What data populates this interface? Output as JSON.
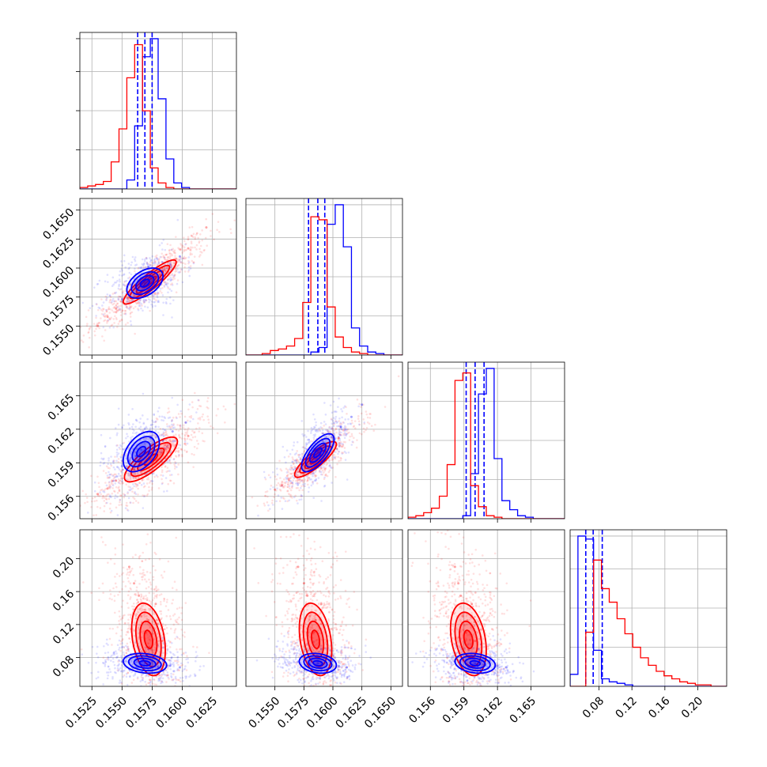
{
  "colors": {
    "blue": "#0000ff",
    "red": "#ff0000"
  },
  "chart_data": {
    "type": "corner",
    "grid": true,
    "params": [
      {
        "range": [
          0.1515,
          0.1645
        ],
        "ticks": [
          0.1525,
          0.155,
          0.1575,
          0.16,
          0.1625
        ],
        "tick_labels": [
          "0.1525",
          "0.1550",
          "0.1575",
          "0.1600",
          "0.1625"
        ]
      },
      {
        "range": [
          0.1525,
          0.166
        ],
        "ticks": [
          0.155,
          0.1575,
          0.16,
          0.1625,
          0.165
        ],
        "tick_labels": [
          "0.1550",
          "0.1575",
          "0.1600",
          "0.1625",
          "0.1650"
        ]
      },
      {
        "range": [
          0.154,
          0.168
        ],
        "ticks": [
          0.156,
          0.159,
          0.162,
          0.165
        ],
        "tick_labels": [
          "0.156",
          "0.159",
          "0.162",
          "0.165"
        ]
      },
      {
        "range": [
          0.045,
          0.235
        ],
        "ticks": [
          0.08,
          0.12,
          0.16,
          0.2
        ],
        "tick_labels": [
          "0.08",
          "0.12",
          "0.16",
          "0.20"
        ]
      }
    ],
    "series": [
      {
        "color": "blue",
        "quantiles": [
          [
            0.1563,
            0.1569,
            0.1575
          ],
          [
            0.1579,
            0.1587,
            0.1593
          ],
          [
            0.1592,
            0.16,
            0.1608
          ],
          [
            0.064,
            0.073,
            0.084
          ]
        ],
        "hist_bins": [
          [
            0.1515,
            0.15215,
            0.1528,
            0.15345,
            0.1541,
            0.15475,
            0.1554,
            0.15605,
            0.1567,
            0.15735,
            0.158,
            0.15865,
            0.1593,
            0.15995,
            0.1606,
            0.16125,
            0.1619,
            0.16255,
            0.1632,
            0.16385,
            0.1645
          ],
          [
            0.1525,
            0.1532,
            0.1539,
            0.1546,
            0.1553,
            0.156,
            0.1567,
            0.1574,
            0.1581,
            0.1588,
            0.1595,
            0.1602,
            0.1609,
            0.1616,
            0.1623,
            0.163,
            0.1637,
            0.1644,
            0.1651,
            0.1658,
            0.1665
          ],
          [
            0.154,
            0.1547,
            0.1554,
            0.1561,
            0.1568,
            0.1575,
            0.1582,
            0.1589,
            0.1596,
            0.1603,
            0.161,
            0.1617,
            0.1624,
            0.1631,
            0.1638,
            0.1645,
            0.1652,
            0.1659,
            0.1666,
            0.1673,
            0.168
          ],
          [
            0.045,
            0.0545,
            0.064,
            0.0735,
            0.083,
            0.0925,
            0.102,
            0.1115,
            0.121,
            0.1305,
            0.14,
            0.1495,
            0.159,
            0.1685,
            0.178,
            0.1875,
            0.197,
            0.2065,
            0.216,
            0.2255,
            0.235
          ]
        ],
        "hist_counts": [
          [
            0,
            0,
            0,
            0,
            0,
            0,
            0.06,
            0.42,
            0.88,
            1.0,
            0.6,
            0.2,
            0.04,
            0.01,
            0,
            0,
            0,
            0,
            0,
            0
          ],
          [
            0,
            0,
            0,
            0,
            0,
            0,
            0,
            0,
            0.02,
            0.05,
            0.87,
            1.0,
            0.72,
            0.18,
            0.06,
            0.02,
            0.01,
            0,
            0,
            0
          ],
          [
            0,
            0,
            0,
            0,
            0,
            0,
            0,
            0.02,
            0.3,
            0.83,
            1.0,
            0.4,
            0.12,
            0.06,
            0.02,
            0.01,
            0,
            0,
            0,
            0
          ],
          [
            0.08,
            1.0,
            0.98,
            0.24,
            0.05,
            0.03,
            0.02,
            0.01,
            0,
            0,
            0,
            0,
            0,
            0,
            0,
            0,
            0,
            0,
            0,
            0
          ]
        ],
        "points_2d": {
          "1-0": [
            [
              0.1569,
              0.1587
            ],
            [
              0.1562,
              0.1582
            ],
            [
              0.1577,
              0.1593
            ],
            [
              0.1556,
              0.1578
            ],
            [
              0.1584,
              0.1598
            ],
            [
              0.1572,
              0.1601
            ],
            [
              0.1566,
              0.1575
            ],
            [
              0.159,
              0.1603
            ],
            [
              0.155,
              0.1573
            ],
            [
              0.1598,
              0.161
            ]
          ],
          "2-0": [
            [
              0.1569,
              0.16
            ],
            [
              0.1562,
              0.1596
            ],
            [
              0.1577,
              0.1605
            ],
            [
              0.1556,
              0.1592
            ],
            [
              0.1584,
              0.161
            ],
            [
              0.1574,
              0.1612
            ],
            [
              0.1565,
              0.1588
            ],
            [
              0.1592,
              0.1618
            ],
            [
              0.155,
              0.1587
            ],
            [
              0.1603,
              0.1626
            ]
          ],
          "2-1": [
            [
              0.1587,
              0.16
            ],
            [
              0.1582,
              0.1595
            ],
            [
              0.1593,
              0.1606
            ],
            [
              0.1576,
              0.159
            ],
            [
              0.1599,
              0.1613
            ],
            [
              0.1607,
              0.1622
            ],
            [
              0.1616,
              0.1631
            ],
            [
              0.157,
              0.1586
            ],
            [
              0.1589,
              0.1598
            ],
            [
              0.1625,
              0.1642
            ]
          ],
          "3-0": [
            [
              0.1569,
              0.073
            ],
            [
              0.1562,
              0.068
            ],
            [
              0.1577,
              0.08
            ],
            [
              0.1556,
              0.066
            ],
            [
              0.1584,
              0.076
            ],
            [
              0.1572,
              0.09
            ],
            [
              0.1566,
              0.062
            ],
            [
              0.159,
              0.07
            ],
            [
              0.155,
              0.075
            ],
            [
              0.1598,
              0.068
            ]
          ],
          "3-1": [
            [
              0.1587,
              0.073
            ],
            [
              0.1582,
              0.068
            ],
            [
              0.1593,
              0.08
            ],
            [
              0.1576,
              0.066
            ],
            [
              0.1599,
              0.076
            ],
            [
              0.159,
              0.09
            ],
            [
              0.1584,
              0.062
            ],
            [
              0.1605,
              0.07
            ],
            [
              0.157,
              0.075
            ],
            [
              0.1612,
              0.068
            ]
          ],
          "3-2": [
            [
              0.16,
              0.073
            ],
            [
              0.1594,
              0.068
            ],
            [
              0.1607,
              0.08
            ],
            [
              0.1588,
              0.066
            ],
            [
              0.1613,
              0.076
            ],
            [
              0.1603,
              0.09
            ],
            [
              0.1597,
              0.062
            ],
            [
              0.162,
              0.07
            ],
            [
              0.1582,
              0.075
            ],
            [
              0.1628,
              0.068
            ]
          ]
        }
      },
      {
        "color": "red",
        "quantiles": [
          null,
          null,
          null,
          null
        ],
        "hist_bins": [
          [
            0.1515,
            0.15215,
            0.1528,
            0.15345,
            0.1541,
            0.15475,
            0.1554,
            0.15605,
            0.1567,
            0.15735,
            0.158,
            0.15865,
            0.1593,
            0.15995,
            0.1606,
            0.16125,
            0.1619,
            0.16255,
            0.1632,
            0.16385,
            0.1645
          ],
          [
            0.1525,
            0.1532,
            0.1539,
            0.1546,
            0.1553,
            0.156,
            0.1567,
            0.1574,
            0.1581,
            0.1588,
            0.1595,
            0.1602,
            0.1609,
            0.1616,
            0.1623,
            0.163,
            0.1637,
            0.1644,
            0.1651,
            0.1658,
            0.1665
          ],
          [
            0.154,
            0.1547,
            0.1554,
            0.1561,
            0.1568,
            0.1575,
            0.1582,
            0.1589,
            0.1596,
            0.1603,
            0.161,
            0.1617,
            0.1624,
            0.1631,
            0.1638,
            0.1645,
            0.1652,
            0.1659,
            0.1666,
            0.1673,
            0.168
          ],
          [
            0.045,
            0.0545,
            0.064,
            0.0735,
            0.083,
            0.0925,
            0.102,
            0.1115,
            0.121,
            0.1305,
            0.14,
            0.1495,
            0.159,
            0.1685,
            0.178,
            0.1875,
            0.197,
            0.2065,
            0.216,
            0.2255,
            0.235
          ]
        ],
        "hist_counts": [
          [
            0.01,
            0.02,
            0.03,
            0.05,
            0.18,
            0.4,
            0.74,
            0.96,
            0.52,
            0.14,
            0.04,
            0.01,
            0,
            0,
            0,
            0,
            0,
            0,
            0,
            0
          ],
          [
            0,
            0,
            0.01,
            0.03,
            0.04,
            0.06,
            0.11,
            0.35,
            0.92,
            0.9,
            0.32,
            0.12,
            0.05,
            0.02,
            0.01,
            0,
            0,
            0,
            0,
            0
          ],
          [
            0.01,
            0.02,
            0.04,
            0.07,
            0.15,
            0.36,
            0.92,
            0.97,
            0.22,
            0.08,
            0.02,
            0.01,
            0,
            0,
            0,
            0,
            0,
            0,
            0,
            0
          ],
          [
            0,
            0,
            0.36,
            0.84,
            0.65,
            0.56,
            0.45,
            0.35,
            0.26,
            0.19,
            0.14,
            0.1,
            0.07,
            0.05,
            0.03,
            0.02,
            0.01,
            0.01,
            0,
            0
          ]
        ],
        "points_2d": {
          "1-0": [
            [
              0.1574,
              0.1588
            ],
            [
              0.1545,
              0.1565
            ],
            [
              0.153,
              0.155
            ],
            [
              0.1583,
              0.16
            ],
            [
              0.156,
              0.1578
            ],
            [
              0.1595,
              0.1608
            ],
            [
              0.1566,
              0.1584
            ],
            [
              0.1538,
              0.1558
            ],
            [
              0.1605,
              0.1617
            ],
            [
              0.162,
              0.1635
            ]
          ],
          "2-0": [
            [
              0.1574,
              0.1593
            ],
            [
              0.1545,
              0.1574
            ],
            [
              0.153,
              0.1562
            ],
            [
              0.1583,
              0.1599
            ],
            [
              0.156,
              0.1584
            ],
            [
              0.1595,
              0.1606
            ],
            [
              0.1566,
              0.159
            ],
            [
              0.1538,
              0.1567
            ],
            [
              0.1605,
              0.1614
            ],
            [
              0.1586,
              0.1594
            ]
          ],
          "2-1": [
            [
              0.1586,
              0.1594
            ],
            [
              0.157,
              0.1582
            ],
            [
              0.1556,
              0.157
            ],
            [
              0.1595,
              0.1602
            ],
            [
              0.1578,
              0.1588
            ],
            [
              0.1605,
              0.1612
            ],
            [
              0.1583,
              0.159
            ],
            [
              0.1562,
              0.1575
            ],
            [
              0.155,
              0.1566
            ],
            [
              0.16,
              0.1606
            ]
          ],
          "3-0": [
            [
              0.1574,
              0.09
            ],
            [
              0.157,
              0.11
            ],
            [
              0.1566,
              0.13
            ],
            [
              0.1578,
              0.145
            ],
            [
              0.1564,
              0.155
            ],
            [
              0.1583,
              0.1
            ],
            [
              0.156,
              0.17
            ],
            [
              0.158,
              0.08
            ],
            [
              0.1556,
              0.19
            ],
            [
              0.1572,
              0.125
            ]
          ],
          "3-1": [
            [
              0.1586,
              0.09
            ],
            [
              0.1583,
              0.11
            ],
            [
              0.158,
              0.13
            ],
            [
              0.159,
              0.145
            ],
            [
              0.1578,
              0.155
            ],
            [
              0.1595,
              0.1
            ],
            [
              0.1575,
              0.17
            ],
            [
              0.1592,
              0.08
            ],
            [
              0.157,
              0.19
            ],
            [
              0.1585,
              0.125
            ]
          ],
          "3-2": [
            [
              0.1594,
              0.09
            ],
            [
              0.1592,
              0.11
            ],
            [
              0.1589,
              0.13
            ],
            [
              0.1597,
              0.145
            ],
            [
              0.1587,
              0.155
            ],
            [
              0.16,
              0.1
            ],
            [
              0.1585,
              0.17
            ],
            [
              0.1599,
              0.08
            ],
            [
              0.1582,
              0.19
            ],
            [
              0.1593,
              0.125
            ]
          ]
        }
      }
    ],
    "contours": {
      "note": "density contours (1-sigma .. 2-sigma levels) per pair",
      "1-0": {
        "blue": {
          "center": [
            0.1569,
            0.1587
          ],
          "sx": 0.00075,
          "sy": 0.00065,
          "rho": 0.45
        },
        "red": {
          "center": [
            0.1573,
            0.1588
          ],
          "sx": 0.0011,
          "sy": 0.00095,
          "rho": 0.9
        }
      },
      "2-0": {
        "blue": {
          "center": [
            0.1566,
            0.16
          ],
          "sx": 0.00075,
          "sy": 0.0009,
          "rho": 0.45
        },
        "red": {
          "center": [
            0.1574,
            0.1593
          ],
          "sx": 0.0011,
          "sy": 0.001,
          "rho": 0.8
        }
      },
      "2-1": {
        "blue": {
          "center": [
            0.1587,
            0.1599
          ],
          "sx": 0.0007,
          "sy": 0.00085,
          "rho": 0.7
        },
        "red": {
          "center": [
            0.1585,
            0.1593
          ],
          "sx": 0.0009,
          "sy": 0.0008,
          "rho": 0.85
        }
      },
      "3-0": {
        "blue": {
          "center": [
            0.1569,
            0.073
          ],
          "sx": 0.0009,
          "sy": 0.006,
          "rho": -0.2
        },
        "red": {
          "center": [
            0.1572,
            0.102
          ],
          "sx": 0.0007,
          "sy": 0.022,
          "rho": -0.3
        }
      },
      "3-1": {
        "blue": {
          "center": [
            0.1587,
            0.073
          ],
          "sx": 0.0008,
          "sy": 0.006,
          "rho": -0.2
        },
        "red": {
          "center": [
            0.1585,
            0.102
          ],
          "sx": 0.0007,
          "sy": 0.022,
          "rho": -0.3
        }
      },
      "3-2": {
        "blue": {
          "center": [
            0.16,
            0.073
          ],
          "sx": 0.0009,
          "sy": 0.006,
          "rho": -0.2
        },
        "red": {
          "center": [
            0.1594,
            0.102
          ],
          "sx": 0.0008,
          "sy": 0.022,
          "rho": -0.3
        }
      }
    }
  }
}
